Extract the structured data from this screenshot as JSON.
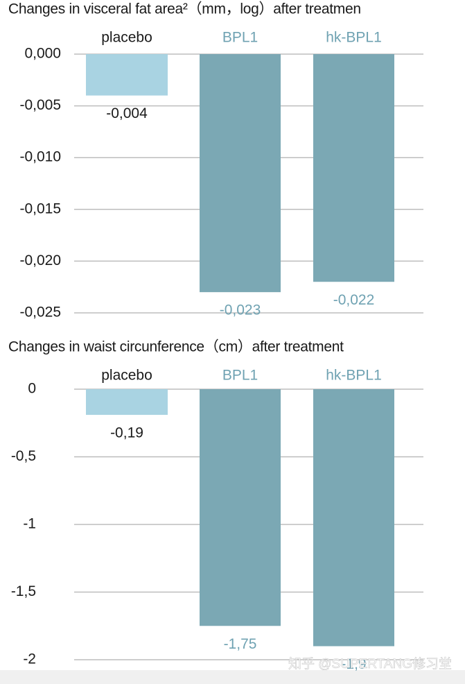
{
  "chart_data": [
    {
      "type": "bar",
      "title": "Changes in visceral fat area²（mm，log）after treatmen",
      "categories": [
        "placebo",
        "BPL1",
        "hk-BPL1"
      ],
      "values": [
        -0.004,
        -0.023,
        -0.022
      ],
      "value_labels": [
        "-0,004",
        "-0,023",
        "-0,022"
      ],
      "colors": [
        "#a9d3e2",
        "#7ba8b4",
        "#7ba8b4"
      ],
      "text_colors": [
        "#1a1a1a",
        "#6fa2b2",
        "#6fa2b2"
      ],
      "ylim": [
        -0.025,
        0
      ],
      "yticks": [
        {
          "value": 0,
          "label": "0,000"
        },
        {
          "value": -0.005,
          "label": "-0,005"
        },
        {
          "value": -0.01,
          "label": "-0,010"
        },
        {
          "value": -0.015,
          "label": "-0,015"
        },
        {
          "value": -0.02,
          "label": "-0,020"
        },
        {
          "value": -0.025,
          "label": "-0,025"
        }
      ],
      "grid": true
    },
    {
      "type": "bar",
      "title": "Changes in waist circunference（cm）after treatment",
      "categories": [
        "placebo",
        "BPL1",
        "hk-BPL1"
      ],
      "values": [
        -0.19,
        -1.75,
        -1.9
      ],
      "value_labels": [
        "-0,19",
        "-1,75",
        "-1,9"
      ],
      "colors": [
        "#a9d3e2",
        "#7ba8b4",
        "#7ba8b4"
      ],
      "text_colors": [
        "#1a1a1a",
        "#6fa2b2",
        "#6fa2b2"
      ],
      "ylim": [
        -2,
        0
      ],
      "yticks": [
        0,
        {
          "value": -0.5,
          "label": "-0,5"
        },
        -1,
        {
          "value": -1.5,
          "label": "-1,5"
        },
        -2
      ],
      "grid": true
    }
  ],
  "watermark": "知乎 @SUPERTANG修习堂"
}
